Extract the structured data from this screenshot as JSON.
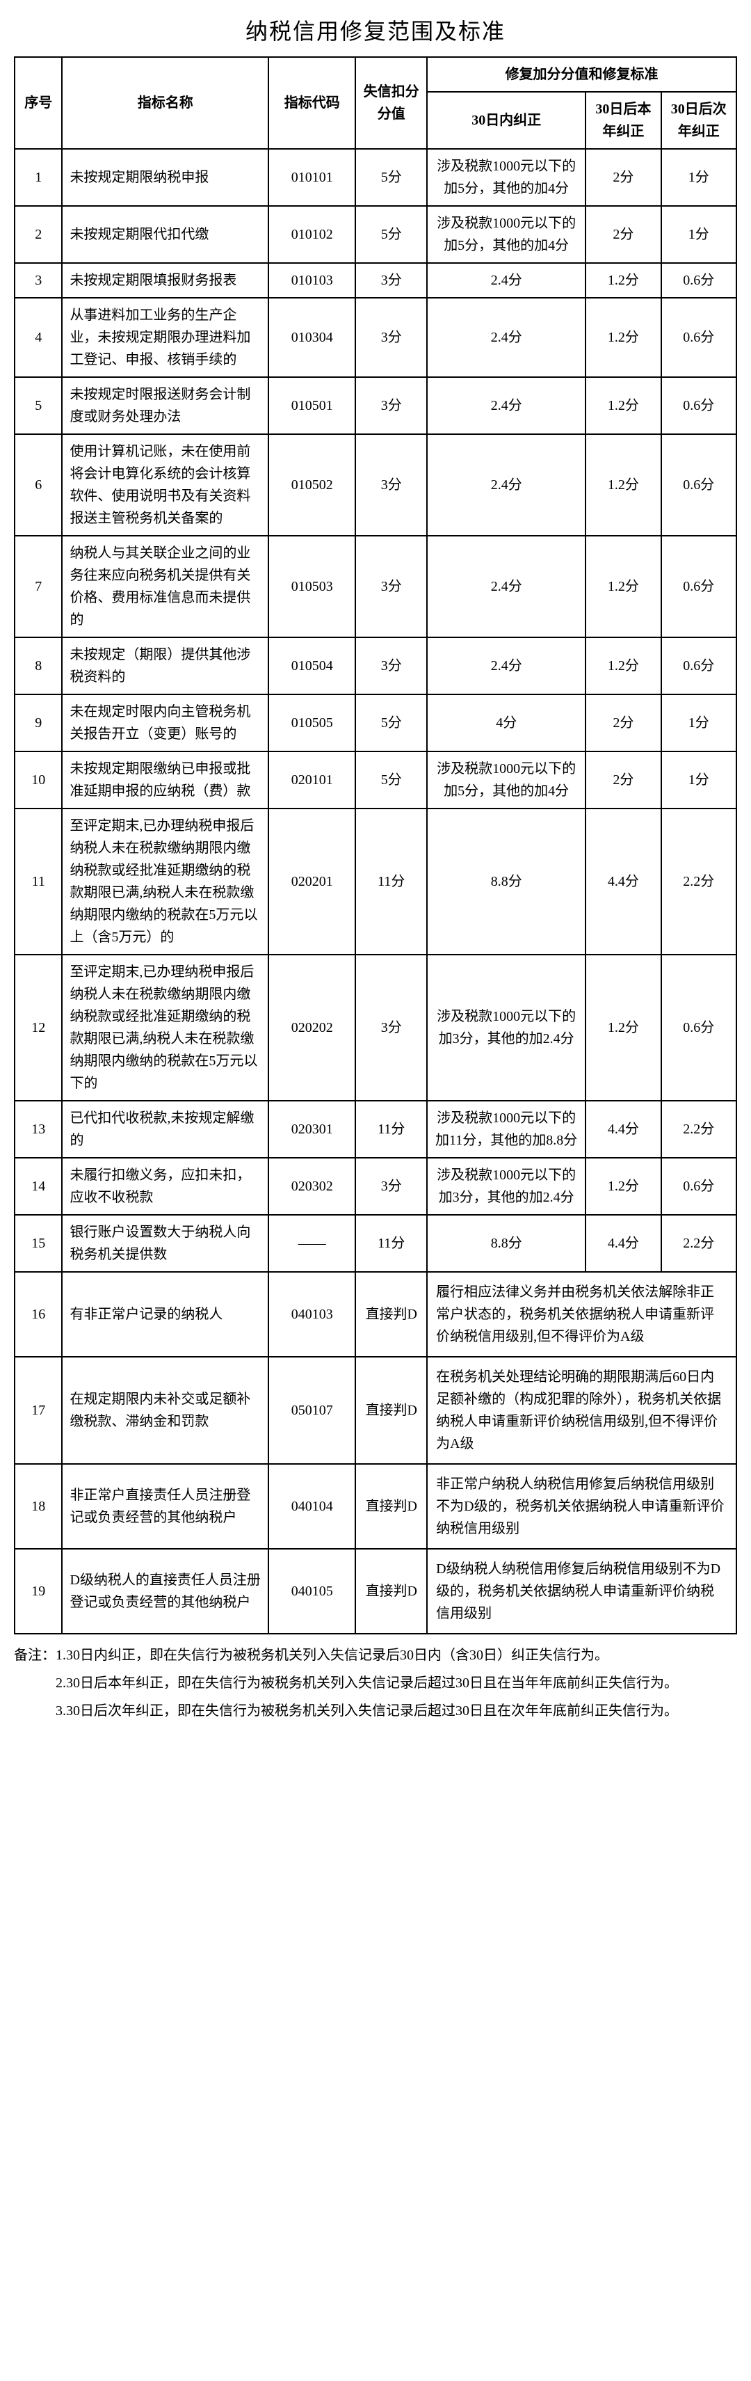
{
  "title": "纳税信用修复范围及标准",
  "headers": {
    "seq": "序号",
    "name": "指标名称",
    "code": "指标代码",
    "deduct": "失信扣分\n分值",
    "restore_group": "修复加分分值和修复标准",
    "in30": "30日内纠正",
    "thisYear": "30日后本\n年纠正",
    "nextYear": "30日后次\n年纠正"
  },
  "rows": [
    {
      "seq": "1",
      "name": "未按规定期限纳税申报",
      "code": "010101",
      "deduct": "5分",
      "in30": "涉及税款1000元以下的加5分，其他的加4分",
      "this": "2分",
      "next": "1分"
    },
    {
      "seq": "2",
      "name": "未按规定期限代扣代缴",
      "code": "010102",
      "deduct": "5分",
      "in30": "涉及税款1000元以下的加5分，其他的加4分",
      "this": "2分",
      "next": "1分"
    },
    {
      "seq": "3",
      "name": "未按规定期限填报财务报表",
      "code": "010103",
      "deduct": "3分",
      "in30": "2.4分",
      "this": "1.2分",
      "next": "0.6分"
    },
    {
      "seq": "4",
      "name": "从事进料加工业务的生产企业，未按规定期限办理进料加工登记、申报、核销手续的",
      "code": "010304",
      "deduct": "3分",
      "in30": "2.4分",
      "this": "1.2分",
      "next": "0.6分"
    },
    {
      "seq": "5",
      "name": "未按规定时限报送财务会计制度或财务处理办法",
      "code": "010501",
      "deduct": "3分",
      "in30": "2.4分",
      "this": "1.2分",
      "next": "0.6分"
    },
    {
      "seq": "6",
      "name": "使用计算机记账，未在使用前将会计电算化系统的会计核算软件、使用说明书及有关资料报送主管税务机关备案的",
      "code": "010502",
      "deduct": "3分",
      "in30": "2.4分",
      "this": "1.2分",
      "next": "0.6分"
    },
    {
      "seq": "7",
      "name": "纳税人与其关联企业之间的业务往来应向税务机关提供有关价格、费用标准信息而未提供的",
      "code": "010503",
      "deduct": "3分",
      "in30": "2.4分",
      "this": "1.2分",
      "next": "0.6分"
    },
    {
      "seq": "8",
      "name": "未按规定（期限）提供其他涉税资料的",
      "code": "010504",
      "deduct": "3分",
      "in30": "2.4分",
      "this": "1.2分",
      "next": "0.6分"
    },
    {
      "seq": "9",
      "name": "未在规定时限内向主管税务机关报告开立（变更）账号的",
      "code": "010505",
      "deduct": "5分",
      "in30": "4分",
      "this": "2分",
      "next": "1分"
    },
    {
      "seq": "10",
      "name": "未按规定期限缴纳已申报或批准延期申报的应纳税（费）款",
      "code": "020101",
      "deduct": "5分",
      "in30": "涉及税款1000元以下的加5分，其他的加4分",
      "this": "2分",
      "next": "1分"
    },
    {
      "seq": "11",
      "name": "至评定期末,已办理纳税申报后纳税人未在税款缴纳期限内缴纳税款或经批准延期缴纳的税款期限已满,纳税人未在税款缴纳期限内缴纳的税款在5万元以上（含5万元）的",
      "code": "020201",
      "deduct": "11分",
      "in30": "8.8分",
      "this": "4.4分",
      "next": "2.2分"
    },
    {
      "seq": "12",
      "name": "至评定期末,已办理纳税申报后纳税人未在税款缴纳期限内缴纳税款或经批准延期缴纳的税款期限已满,纳税人未在税款缴纳期限内缴纳的税款在5万元以下的",
      "code": "020202",
      "deduct": "3分",
      "in30": "涉及税款1000元以下的加3分，其他的加2.4分",
      "this": "1.2分",
      "next": "0.6分"
    },
    {
      "seq": "13",
      "name": "已代扣代收税款,未按规定解缴的",
      "code": "020301",
      "deduct": "11分",
      "in30": "涉及税款1000元以下的加11分，其他的加8.8分",
      "this": "4.4分",
      "next": "2.2分"
    },
    {
      "seq": "14",
      "name": "未履行扣缴义务，应扣未扣，应收不收税款",
      "code": "020302",
      "deduct": "3分",
      "in30": "涉及税款1000元以下的加3分，其他的加2.4分",
      "this": "1.2分",
      "next": "0.6分"
    },
    {
      "seq": "15",
      "name": "银行账户设置数大于纳税人向税务机关提供数",
      "code": "——",
      "deduct": "11分",
      "in30": "8.8分",
      "this": "4.4分",
      "next": "2.2分"
    },
    {
      "seq": "16",
      "name": "有非正常户记录的纳税人",
      "code": "040103",
      "deduct": "直接判D",
      "criteria": "履行相应法律义务并由税务机关依法解除非正常户状态的，税务机关依据纳税人申请重新评价纳税信用级别,但不得评价为A级"
    },
    {
      "seq": "17",
      "name": "在规定期限内未补交或足额补缴税款、滞纳金和罚款",
      "code": "050107",
      "deduct": "直接判D",
      "criteria": "在税务机关处理结论明确的期限期满后60日内足额补缴的（构成犯罪的除外），税务机关依据纳税人申请重新评价纳税信用级别,但不得评价为A级"
    },
    {
      "seq": "18",
      "name": "非正常户直接责任人员注册登记或负责经营的其他纳税户",
      "code": "040104",
      "deduct": "直接判D",
      "criteria": "非正常户纳税人纳税信用修复后纳税信用级别不为D级的，税务机关依据纳税人申请重新评价纳税信用级别"
    },
    {
      "seq": "19",
      "name": "D级纳税人的直接责任人员注册登记或负责经营的其他纳税户",
      "code": "040105",
      "deduct": "直接判D",
      "criteria": "D级纳税人纳税信用修复后纳税信用级别不为D级的，税务机关依据纳税人申请重新评价纳税信用级别"
    }
  ],
  "notes": [
    "备注：1.30日内纠正，即在失信行为被税务机关列入失信记录后30日内（含30日）纠正失信行为。",
    "　　　2.30日后本年纠正，即在失信行为被税务机关列入失信记录后超过30日且在当年年底前纠正失信行为。",
    "　　　3.30日后次年纠正，即在失信行为被税务机关列入失信记录后超过30日且在次年年底前纠正失信行为。"
  ]
}
